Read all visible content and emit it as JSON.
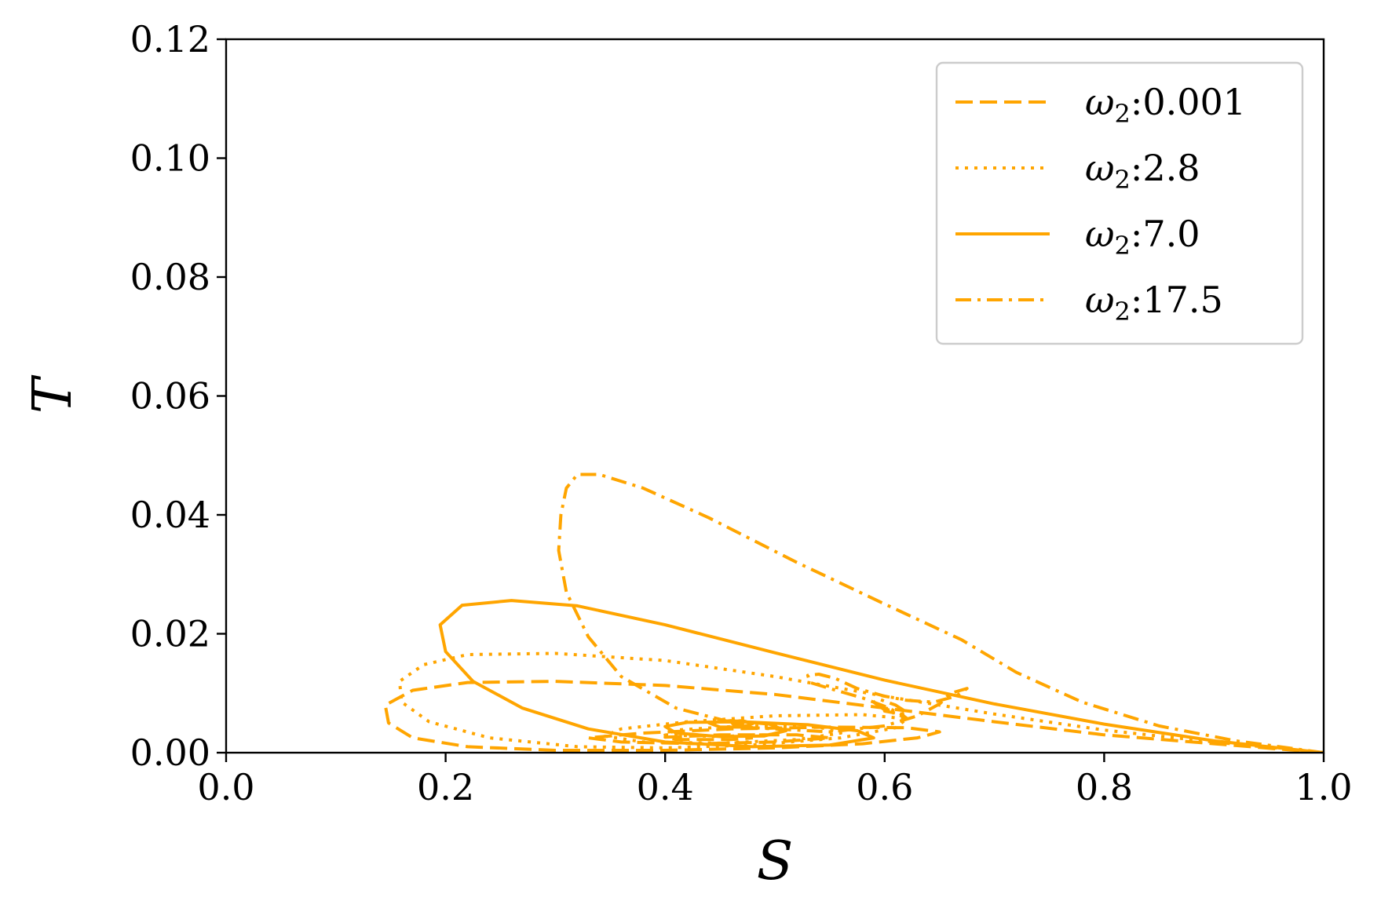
{
  "chart_data": {
    "type": "line",
    "xlabel": "S",
    "ylabel": "T",
    "xlim": [
      0.0,
      1.0
    ],
    "ylim": [
      0.0,
      0.12
    ],
    "x_ticks": [
      "0.0",
      "0.2",
      "0.4",
      "0.6",
      "0.8",
      "1.0"
    ],
    "y_ticks": [
      "0.00",
      "0.02",
      "0.04",
      "0.06",
      "0.08",
      "0.10",
      "0.12"
    ],
    "grid": false,
    "legend_position": "top-right",
    "color": "#FFA500",
    "series": [
      {
        "name": "ω2:0.001",
        "legend_label": {
          "base": "ω",
          "sub": "2",
          "rest": ":0.001"
        },
        "dash": "dashed",
        "points": [
          [
            1.0,
            0.0
          ],
          [
            0.9,
            0.0015
          ],
          [
            0.8,
            0.003
          ],
          [
            0.7,
            0.0052
          ],
          [
            0.6,
            0.0075
          ],
          [
            0.5,
            0.0098
          ],
          [
            0.4,
            0.0113
          ],
          [
            0.3,
            0.012
          ],
          [
            0.22,
            0.0118
          ],
          [
            0.17,
            0.0105
          ],
          [
            0.145,
            0.008
          ],
          [
            0.148,
            0.005
          ],
          [
            0.17,
            0.0025
          ],
          [
            0.22,
            0.001
          ],
          [
            0.3,
            0.0004
          ],
          [
            0.4,
            0.0004
          ],
          [
            0.5,
            0.0008
          ],
          [
            0.58,
            0.0015
          ],
          [
            0.63,
            0.0025
          ],
          [
            0.65,
            0.0035
          ],
          [
            0.62,
            0.0042
          ],
          [
            0.55,
            0.0043
          ],
          [
            0.46,
            0.004
          ],
          [
            0.38,
            0.0033
          ],
          [
            0.33,
            0.0025
          ],
          [
            0.36,
            0.0018
          ],
          [
            0.43,
            0.0015
          ],
          [
            0.5,
            0.0018
          ],
          [
            0.55,
            0.0025
          ],
          [
            0.52,
            0.003
          ],
          [
            0.45,
            0.003
          ],
          [
            0.4,
            0.0026
          ],
          [
            0.41,
            0.0022
          ],
          [
            0.46,
            0.0022
          ],
          [
            0.48,
            0.0025
          ]
        ]
      },
      {
        "name": "ω2:2.8",
        "legend_label": {
          "base": "ω",
          "sub": "2",
          "rest": ":2.8"
        },
        "dash": "dotted",
        "points": [
          [
            1.0,
            0.0
          ],
          [
            0.9,
            0.0018
          ],
          [
            0.8,
            0.0038
          ],
          [
            0.7,
            0.0065
          ],
          [
            0.6,
            0.0095
          ],
          [
            0.5,
            0.0128
          ],
          [
            0.4,
            0.0155
          ],
          [
            0.3,
            0.0167
          ],
          [
            0.22,
            0.0165
          ],
          [
            0.18,
            0.0148
          ],
          [
            0.158,
            0.012
          ],
          [
            0.16,
            0.0085
          ],
          [
            0.185,
            0.0052
          ],
          [
            0.24,
            0.0025
          ],
          [
            0.32,
            0.001
          ],
          [
            0.4,
            0.0008
          ],
          [
            0.48,
            0.0013
          ],
          [
            0.56,
            0.0025
          ],
          [
            0.61,
            0.0042
          ],
          [
            0.62,
            0.0057
          ],
          [
            0.58,
            0.0064
          ],
          [
            0.5,
            0.0062
          ],
          [
            0.42,
            0.0052
          ],
          [
            0.36,
            0.004
          ],
          [
            0.345,
            0.0028
          ],
          [
            0.38,
            0.0018
          ],
          [
            0.45,
            0.0016
          ],
          [
            0.52,
            0.0022
          ],
          [
            0.56,
            0.0033
          ],
          [
            0.54,
            0.0043
          ],
          [
            0.47,
            0.0045
          ],
          [
            0.41,
            0.0038
          ],
          [
            0.4,
            0.003
          ],
          [
            0.45,
            0.0027
          ],
          [
            0.5,
            0.0031
          ]
        ]
      },
      {
        "name": "ω2:7.0",
        "legend_label": {
          "base": "ω",
          "sub": "2",
          "rest": ":7.0"
        },
        "dash": "solid",
        "points": [
          [
            1.0,
            0.0
          ],
          [
            0.9,
            0.002
          ],
          [
            0.8,
            0.0048
          ],
          [
            0.7,
            0.0082
          ],
          [
            0.6,
            0.0122
          ],
          [
            0.5,
            0.0168
          ],
          [
            0.4,
            0.0215
          ],
          [
            0.32,
            0.0247
          ],
          [
            0.26,
            0.0256
          ],
          [
            0.215,
            0.0248
          ],
          [
            0.195,
            0.0215
          ],
          [
            0.2,
            0.017
          ],
          [
            0.225,
            0.012
          ],
          [
            0.27,
            0.0075
          ],
          [
            0.33,
            0.004
          ],
          [
            0.4,
            0.0018
          ],
          [
            0.48,
            0.001
          ],
          [
            0.55,
            0.0013
          ],
          [
            0.59,
            0.0025
          ],
          [
            0.575,
            0.0037
          ],
          [
            0.53,
            0.0047
          ],
          [
            0.47,
            0.0052
          ],
          [
            0.42,
            0.0051
          ],
          [
            0.4,
            0.0044
          ],
          [
            0.41,
            0.0033
          ],
          [
            0.45,
            0.0027
          ],
          [
            0.49,
            0.0028
          ],
          [
            0.51,
            0.0037
          ],
          [
            0.495,
            0.0048
          ],
          [
            0.46,
            0.0054
          ],
          [
            0.44,
            0.005
          ],
          [
            0.45,
            0.0043
          ],
          [
            0.47,
            0.0043
          ],
          [
            0.48,
            0.0049
          ],
          [
            0.47,
            0.0054
          ],
          [
            0.46,
            0.0052
          ],
          [
            0.462,
            0.0048
          ],
          [
            0.472,
            0.0048
          ]
        ]
      },
      {
        "name": "ω2:17.5",
        "legend_label": {
          "base": "ω",
          "sub": "2",
          "rest": ":17.5"
        },
        "dash": "dashdot",
        "points": [
          [
            1.0,
            0.0
          ],
          [
            0.92,
            0.002
          ],
          [
            0.85,
            0.0045
          ],
          [
            0.78,
            0.0085
          ],
          [
            0.72,
            0.0135
          ],
          [
            0.67,
            0.019
          ],
          [
            0.6,
            0.025
          ],
          [
            0.52,
            0.032
          ],
          [
            0.44,
            0.0395
          ],
          [
            0.38,
            0.0445
          ],
          [
            0.34,
            0.0468
          ],
          [
            0.32,
            0.0468
          ],
          [
            0.31,
            0.0445
          ],
          [
            0.305,
            0.04
          ],
          [
            0.303,
            0.034
          ],
          [
            0.31,
            0.027
          ],
          [
            0.33,
            0.0195
          ],
          [
            0.36,
            0.0128
          ],
          [
            0.41,
            0.0075
          ],
          [
            0.48,
            0.0042
          ],
          [
            0.55,
            0.0035
          ],
          [
            0.6,
            0.0045
          ],
          [
            0.63,
            0.0062
          ],
          [
            0.65,
            0.0082
          ],
          [
            0.66,
            0.01
          ],
          [
            0.675,
            0.0108
          ],
          [
            0.665,
            0.0095
          ],
          [
            0.645,
            0.0085
          ],
          [
            0.62,
            0.0088
          ],
          [
            0.6,
            0.0095
          ],
          [
            0.575,
            0.0108
          ],
          [
            0.555,
            0.0125
          ],
          [
            0.54,
            0.0132
          ],
          [
            0.53,
            0.013
          ],
          [
            0.532,
            0.0118
          ],
          [
            0.55,
            0.0108
          ],
          [
            0.58,
            0.0092
          ],
          [
            0.6,
            0.0078
          ],
          [
            0.615,
            0.0065
          ],
          [
            0.62,
            0.0058
          ],
          [
            0.615,
            0.0062
          ],
          [
            0.6,
            0.0072
          ],
          [
            0.59,
            0.0085
          ],
          [
            0.595,
            0.009
          ],
          [
            0.61,
            0.008
          ],
          [
            0.62,
            0.0068
          ],
          [
            0.615,
            0.0065
          ],
          [
            0.6,
            0.007
          ],
          [
            0.608,
            0.0075
          ]
        ]
      }
    ]
  }
}
